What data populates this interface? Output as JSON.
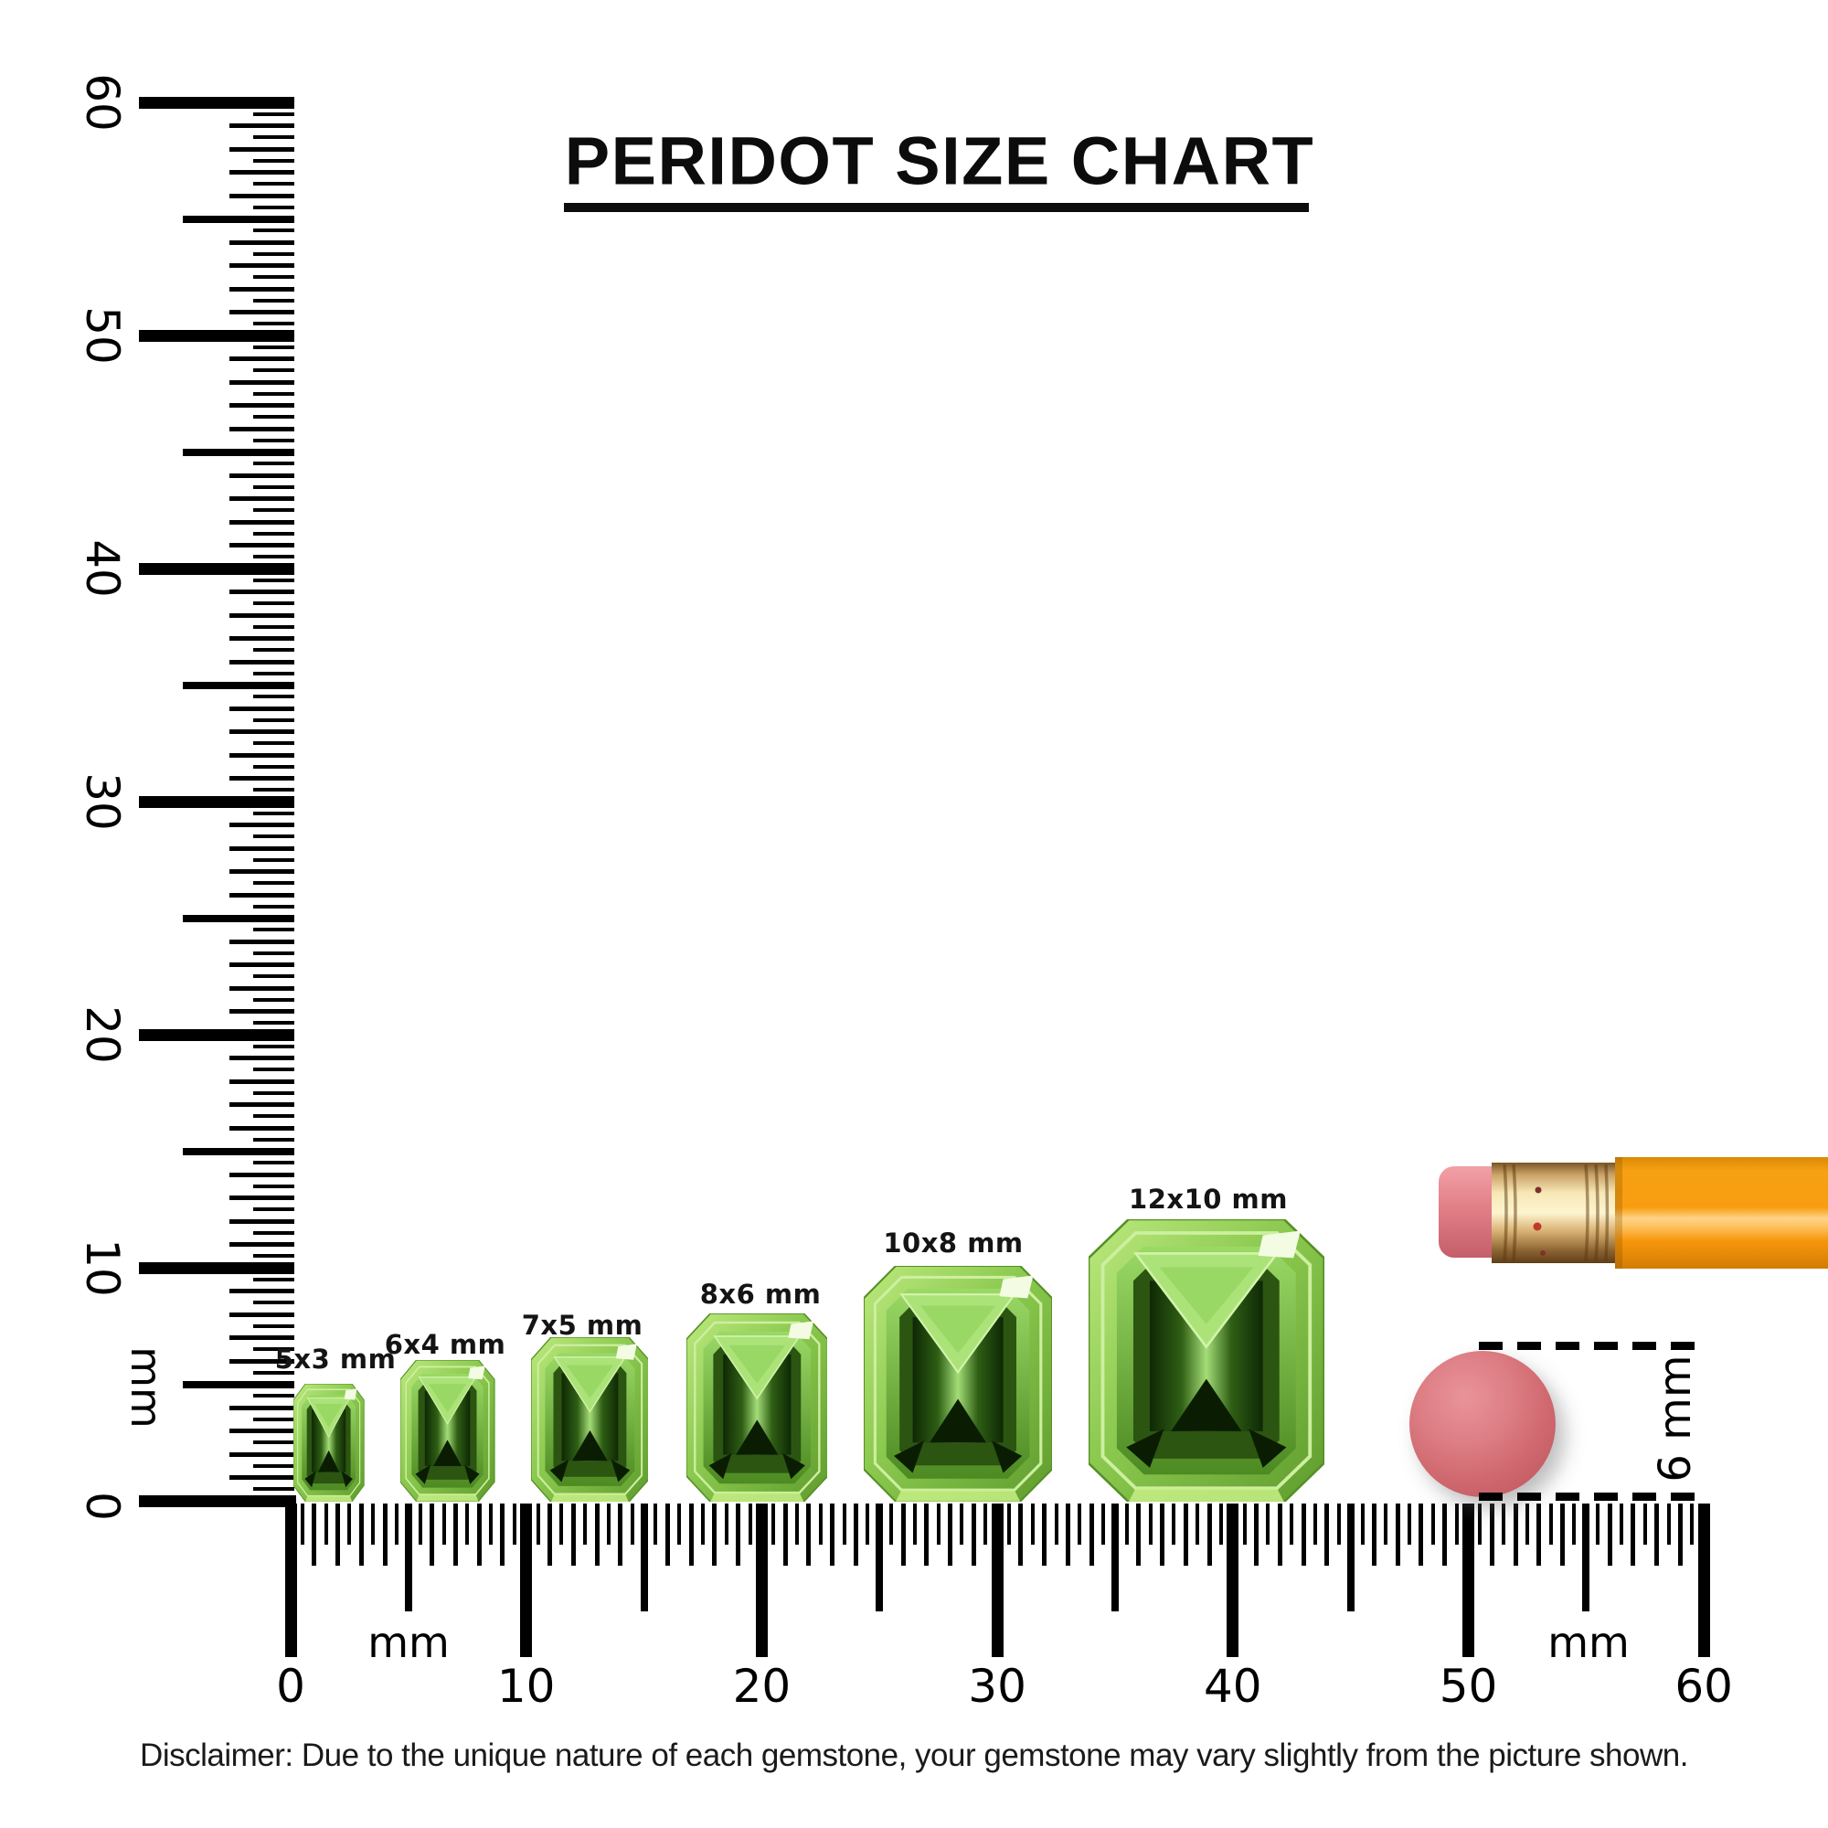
{
  "title": {
    "text": "PERIDOT SIZE CHART"
  },
  "vertical_ruler": {
    "unit": "mm",
    "tick_labels": [
      "0",
      "10",
      "20",
      "30",
      "40",
      "50",
      "60"
    ]
  },
  "horizontal_ruler": {
    "unit_left": "mm",
    "unit_right": "mm",
    "tick_labels": [
      "0",
      "10",
      "20",
      "30",
      "40",
      "50",
      "60"
    ]
  },
  "gems": [
    {
      "label": "5x3 mm",
      "width_mm": 3,
      "height_mm": 5
    },
    {
      "label": "6x4 mm",
      "width_mm": 4,
      "height_mm": 6
    },
    {
      "label": "7x5 mm",
      "width_mm": 5,
      "height_mm": 7
    },
    {
      "label": "8x6 mm",
      "width_mm": 6,
      "height_mm": 8
    },
    {
      "label": "10x8 mm",
      "width_mm": 8,
      "height_mm": 10
    },
    {
      "label": "12x10 mm",
      "width_mm": 10,
      "height_mm": 12
    }
  ],
  "reference_objects": {
    "pencil": {
      "description": "pencil-with-eraser-end"
    },
    "eraser_disc": {
      "diameter_label": "6 mm",
      "diameter_mm": 6
    }
  },
  "disclaimer": {
    "text": "Disclaimer: Due to the unique nature of each gemstone, your gemstone may vary slightly from the picture shown."
  },
  "colors": {
    "ink": "#000000",
    "gem_green_light": "#b9e87a",
    "gem_green": "#7ab93e",
    "gem_green_dark": "#1c3a0a",
    "pencil_orange": "#f89d10",
    "ferrule_gold": "#e8c685",
    "eraser_pink": "#e27f87",
    "disc_pink": "#d66f72"
  }
}
